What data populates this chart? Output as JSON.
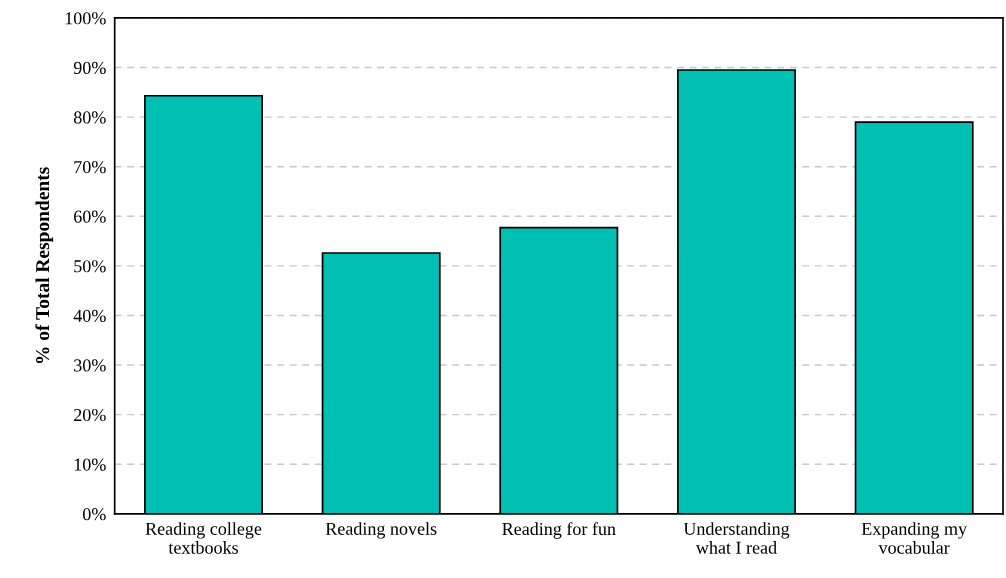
{
  "chart_data": {
    "type": "bar",
    "ylabel": "% of Total Respondents",
    "categories": [
      "Reading college\ntextbooks",
      "Reading novels",
      "Reading for fun",
      "Understanding\nwhat I read",
      "Expanding my\nvocabular"
    ],
    "values": [
      84.3,
      52.6,
      57.7,
      89.5,
      79.0
    ],
    "color": "#00c0b4",
    "ylim": [
      0,
      100
    ],
    "yticks": [
      {
        "value": 0,
        "label": "0%"
      },
      {
        "value": 10,
        "label": "10%"
      },
      {
        "value": 20,
        "label": "20%"
      },
      {
        "value": 30,
        "label": "30%"
      },
      {
        "value": 40,
        "label": "40%"
      },
      {
        "value": 50,
        "label": "50%"
      },
      {
        "value": 60,
        "label": "60%"
      },
      {
        "value": 70,
        "label": "70%"
      },
      {
        "value": 80,
        "label": "80%"
      },
      {
        "value": 90,
        "label": "90%"
      },
      {
        "value": 100,
        "label": "100%"
      }
    ],
    "grid": "y"
  }
}
